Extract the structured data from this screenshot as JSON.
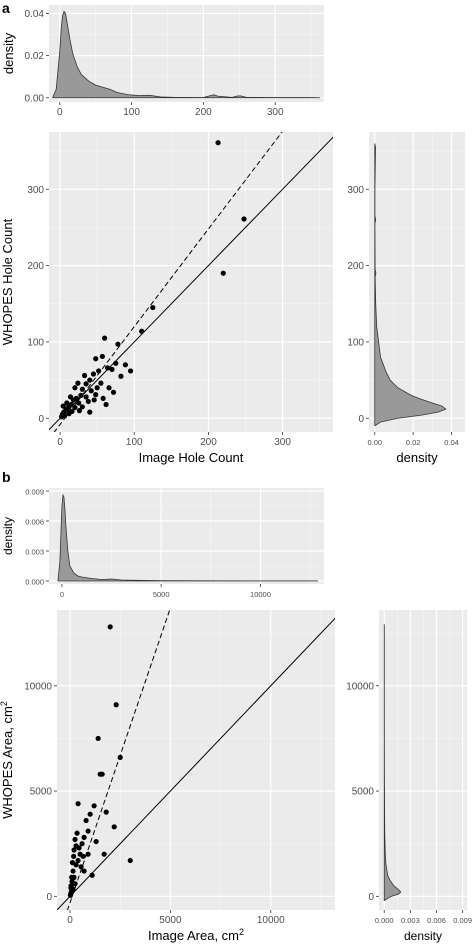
{
  "panel_labels": {
    "a": "a",
    "b": "b"
  },
  "chart_data": [
    {
      "panel": "a",
      "type": "scatter",
      "xlabel": "Image Hole Count",
      "ylabel": "WHOPES Hole Count",
      "xlim": [
        -15,
        368
      ],
      "ylim": [
        -18,
        375
      ],
      "x_ticks": [
        0,
        100,
        200,
        300
      ],
      "y_ticks": [
        0,
        100,
        200,
        300
      ],
      "grid": true,
      "reference_lines": [
        {
          "style": "solid",
          "slope": 1,
          "intercept": 0
        },
        {
          "style": "dashed",
          "slope": 1.28,
          "intercept": -8
        }
      ],
      "points": [
        [
          213,
          361
        ],
        [
          248,
          261
        ],
        [
          220,
          190
        ],
        [
          125,
          145
        ],
        [
          110,
          114
        ],
        [
          78,
          97
        ],
        [
          60,
          105
        ],
        [
          57,
          81
        ],
        [
          48,
          78
        ],
        [
          70,
          64
        ],
        [
          64,
          66
        ],
        [
          52,
          62
        ],
        [
          75,
          72
        ],
        [
          82,
          55
        ],
        [
          45,
          58
        ],
        [
          55,
          46
        ],
        [
          40,
          50
        ],
        [
          35,
          45
        ],
        [
          30,
          38
        ],
        [
          42,
          36
        ],
        [
          48,
          31
        ],
        [
          28,
          30
        ],
        [
          22,
          26
        ],
        [
          18,
          24
        ],
        [
          25,
          20
        ],
        [
          15,
          18
        ],
        [
          12,
          15
        ],
        [
          20,
          14
        ],
        [
          10,
          10
        ],
        [
          8,
          12
        ],
        [
          5,
          8
        ],
        [
          3,
          5
        ],
        [
          6,
          3
        ],
        [
          2,
          2
        ],
        [
          12,
          6
        ],
        [
          16,
          9
        ],
        [
          35,
          28
        ],
        [
          38,
          22
        ],
        [
          50,
          40
        ],
        [
          46,
          24
        ],
        [
          30,
          15
        ],
        [
          26,
          10
        ],
        [
          9,
          20
        ],
        [
          14,
          28
        ],
        [
          4,
          16
        ],
        [
          66,
          40
        ],
        [
          58,
          26
        ],
        [
          72,
          34
        ],
        [
          40,
          8
        ],
        [
          62,
          18
        ],
        [
          88,
          70
        ],
        [
          95,
          62
        ],
        [
          33,
          56
        ],
        [
          20,
          40
        ],
        [
          24,
          46
        ]
      ],
      "top_density": {
        "ylabel": "density",
        "xlim": [
          -15,
          368
        ],
        "ylim": [
          -0.002,
          0.044
        ],
        "y_ticks": [
          0.0,
          0.02,
          0.04
        ],
        "y_tick_labels": [
          "0.00",
          "0.02",
          "0.04"
        ],
        "x": [
          -10,
          -5,
          0,
          2,
          4,
          6,
          8,
          10,
          14,
          18,
          24,
          30,
          40,
          50,
          60,
          70,
          80,
          95,
          110,
          125,
          140,
          160,
          200,
          212,
          215,
          220,
          240,
          248,
          252,
          260,
          300,
          350,
          362
        ],
        "y": [
          0,
          0.004,
          0.022,
          0.033,
          0.039,
          0.041,
          0.04,
          0.036,
          0.028,
          0.021,
          0.015,
          0.011,
          0.008,
          0.006,
          0.005,
          0.004,
          0.0025,
          0.0015,
          0.001,
          0.0012,
          0.0004,
          0.0002,
          0.0001,
          0.0012,
          0.0014,
          0.0008,
          0.0002,
          0.0009,
          0.0009,
          0.0002,
          0.0001,
          0.0001,
          0
        ]
      },
      "right_density": {
        "xlabel": "density",
        "xlim": [
          -0.003,
          0.047
        ],
        "ylim": [
          -18,
          375
        ],
        "x_ticks": [
          0.0,
          0.02,
          0.04
        ],
        "x_tick_labels": [
          "0.00",
          "0.02",
          "0.04"
        ],
        "y": [
          -10,
          -5,
          0,
          4,
          8,
          12,
          16,
          20,
          25,
          30,
          40,
          50,
          60,
          70,
          80,
          100,
          120,
          150,
          185,
          190,
          195,
          255,
          260,
          265,
          300,
          355,
          360
        ],
        "x": [
          0,
          0.003,
          0.012,
          0.024,
          0.033,
          0.037,
          0.035,
          0.03,
          0.024,
          0.019,
          0.012,
          0.008,
          0.006,
          0.0045,
          0.003,
          0.002,
          0.001,
          0.0005,
          0.0002,
          0.0006,
          0.0002,
          0.0001,
          0.0005,
          0.0001,
          0.0001,
          0.0004,
          0
        ]
      }
    },
    {
      "panel": "b",
      "type": "scatter",
      "xlabel": "Image Area, cm",
      "xlabel_sup": "2",
      "ylabel": "WHOPES Area, cm",
      "ylabel_sup": "2",
      "xlim": [
        -650,
        13200
      ],
      "ylim": [
        -650,
        13600
      ],
      "x_ticks": [
        0,
        5000,
        10000
      ],
      "y_ticks": [
        0,
        5000,
        10000
      ],
      "grid": true,
      "reference_lines": [
        {
          "style": "solid",
          "slope": 1,
          "intercept": 0
        },
        {
          "style": "dashed",
          "slope": 2.8,
          "intercept": -300
        }
      ],
      "points": [
        [
          2000,
          12800
        ],
        [
          2300,
          9100
        ],
        [
          1400,
          7500
        ],
        [
          2500,
          6600
        ],
        [
          1600,
          5800
        ],
        [
          1500,
          5800
        ],
        [
          1200,
          4300
        ],
        [
          400,
          4400
        ],
        [
          1800,
          4000
        ],
        [
          1000,
          3900
        ],
        [
          800,
          3600
        ],
        [
          900,
          3100
        ],
        [
          2200,
          3300
        ],
        [
          3000,
          1700
        ],
        [
          1700,
          2000
        ],
        [
          700,
          2800
        ],
        [
          600,
          2500
        ],
        [
          300,
          2400
        ],
        [
          200,
          2200
        ],
        [
          500,
          2000
        ],
        [
          400,
          1700
        ],
        [
          300,
          1500
        ],
        [
          150,
          1200
        ],
        [
          200,
          900
        ],
        [
          100,
          700
        ],
        [
          50,
          500
        ],
        [
          100,
          300
        ],
        [
          30,
          100
        ],
        [
          60,
          200
        ],
        [
          250,
          2700
        ],
        [
          350,
          3000
        ],
        [
          450,
          2300
        ],
        [
          550,
          1400
        ],
        [
          650,
          1900
        ],
        [
          1100,
          1000
        ],
        [
          120,
          1600
        ],
        [
          180,
          1900
        ],
        [
          80,
          900
        ],
        [
          20,
          50
        ],
        [
          40,
          400
        ],
        [
          700,
          1200
        ],
        [
          900,
          2000
        ],
        [
          250,
          600
        ],
        [
          1300,
          2600
        ],
        [
          150,
          350
        ]
      ],
      "top_density": {
        "ylabel": "density",
        "xlim": [
          -650,
          13200
        ],
        "ylim": [
          -0.0003,
          0.0093
        ],
        "y_ticks": [
          0.0,
          0.003,
          0.006,
          0.009
        ],
        "y_tick_labels": [
          "0.000",
          "0.003",
          "0.006",
          "0.009"
        ],
        "x": [
          -200,
          -100,
          0,
          50,
          100,
          150,
          200,
          300,
          400,
          600,
          800,
          1000,
          1500,
          2000,
          2500,
          3000,
          4000,
          5000,
          7000,
          10000,
          12800,
          12900
        ],
        "y": [
          0,
          0.002,
          0.0075,
          0.0086,
          0.0084,
          0.0072,
          0.0055,
          0.003,
          0.0015,
          0.0008,
          0.0005,
          0.0004,
          0.00025,
          0.00015,
          0.0002,
          0.0001,
          6e-05,
          4e-05,
          2e-05,
          1e-05,
          1e-05,
          0
        ]
      },
      "right_density": {
        "xlabel": "density",
        "xlim": [
          -0.0006,
          0.0095
        ],
        "ylim": [
          -650,
          13600
        ],
        "x_ticks": [
          0.0,
          0.003,
          0.006,
          0.009
        ],
        "x_tick_labels": [
          "0.000",
          "0.003",
          "0.006",
          "0.009"
        ],
        "y": [
          -200,
          0,
          100,
          200,
          300,
          500,
          800,
          1000,
          1500,
          2000,
          3000,
          4000,
          6000,
          9000,
          12800,
          12900
        ],
        "x": [
          0,
          0.0008,
          0.0016,
          0.0019,
          0.0017,
          0.0011,
          0.0006,
          0.0004,
          0.0002,
          0.00012,
          6e-05,
          4e-05,
          2e-05,
          1e-05,
          1e-05,
          0
        ]
      }
    }
  ]
}
